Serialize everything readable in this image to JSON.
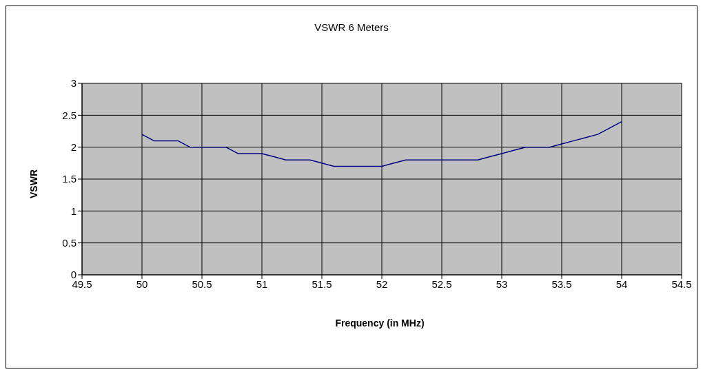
{
  "chart_data": {
    "type": "line",
    "title": "VSWR 6 Meters",
    "xlabel": "Frequency (in MHz)",
    "ylabel": "VSWR",
    "x": [
      50,
      50.1,
      50.2,
      50.3,
      50.4,
      50.5,
      50.6,
      50.7,
      50.8,
      50.9,
      51,
      51.1,
      51.2,
      51.3,
      51.4,
      51.5,
      51.6,
      51.7,
      51.8,
      51.9,
      52,
      52.1,
      52.2,
      52.3,
      52.4,
      52.5,
      52.6,
      52.7,
      52.8,
      52.9,
      53,
      53.1,
      53.2,
      53.3,
      53.4,
      53.5,
      53.6,
      53.7,
      53.8,
      53.9,
      54
    ],
    "series": [
      {
        "color": "#000080",
        "values": [
          2.2,
          2.1,
          2.1,
          2.1,
          2.0,
          2.0,
          2.0,
          2.0,
          1.9,
          1.9,
          1.9,
          1.85,
          1.8,
          1.8,
          1.8,
          1.75,
          1.7,
          1.7,
          1.7,
          1.7,
          1.7,
          1.75,
          1.8,
          1.8,
          1.8,
          1.8,
          1.8,
          1.8,
          1.8,
          1.85,
          1.9,
          1.95,
          2.0,
          2.0,
          2.0,
          2.05,
          2.1,
          2.15,
          2.2,
          2.3,
          2.4
        ]
      }
    ],
    "xlim": [
      49.5,
      54.5
    ],
    "xticks": [
      49.5,
      50,
      50.5,
      51,
      51.5,
      52,
      52.5,
      53,
      53.5,
      54,
      54.5
    ],
    "ylim": [
      0,
      3
    ],
    "yticks": [
      0,
      0.5,
      1,
      1.5,
      2,
      2.5,
      3
    ],
    "grid": true,
    "marker": "none",
    "line_style": "solid"
  }
}
